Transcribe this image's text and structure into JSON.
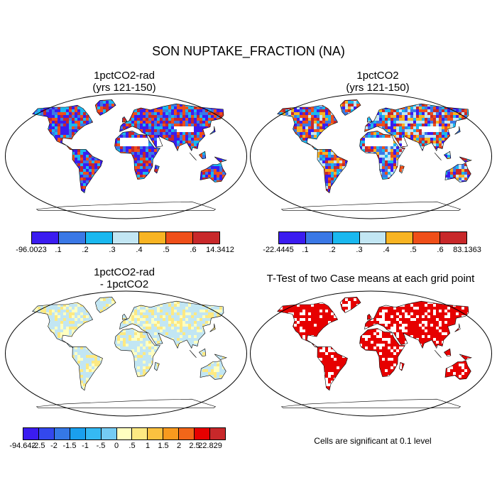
{
  "title": "SON NUPTAKE_FRACTION (NA)",
  "panels": [
    {
      "line1": "1pctCO2-rad",
      "line2": "(yrs 121-150)"
    },
    {
      "line1": "1pctCO2",
      "line2": "(yrs 121-150)"
    },
    {
      "line1": "1pctCO2-rad",
      "line2": "- 1pctCO2"
    },
    {
      "line1": "T-Test of two Case means at each grid point",
      "line2": ""
    }
  ],
  "colorbars": [
    {
      "colors": [
        "#3b1cf0",
        "#3a78e6",
        "#1ab8ef",
        "#c2e6f3",
        "#f8b423",
        "#ef4f19",
        "#c8282a"
      ],
      "labels": [
        "-96.0023",
        ".1",
        ".2",
        ".3",
        ".4",
        ".5",
        ".6",
        "14.3412"
      ]
    },
    {
      "colors": [
        "#3b1cf0",
        "#3a78e6",
        "#1ab8ef",
        "#c2e6f3",
        "#f8b423",
        "#ef4f19",
        "#c8282a"
      ],
      "labels": [
        "-22.4445",
        ".1",
        ".2",
        ".3",
        ".4",
        ".5",
        ".6",
        "83.1363"
      ]
    },
    {
      "colors": [
        "#3b1cf0",
        "#3348ee",
        "#3578e6",
        "#1aa0ee",
        "#35b9f3",
        "#74cbf3",
        "#ffffc0",
        "#fde982",
        "#fbc140",
        "#f99a1e",
        "#f26619",
        "#e60000",
        "#c8282a"
      ],
      "labels": [
        "-94.642",
        "-2.5",
        "-2",
        "-1.5",
        "-1",
        "-.5",
        "0",
        ".5",
        "1",
        "1.5",
        "2",
        "2.5",
        "22.829"
      ]
    }
  ],
  "note": "Cells are significant at 0.1 level"
}
